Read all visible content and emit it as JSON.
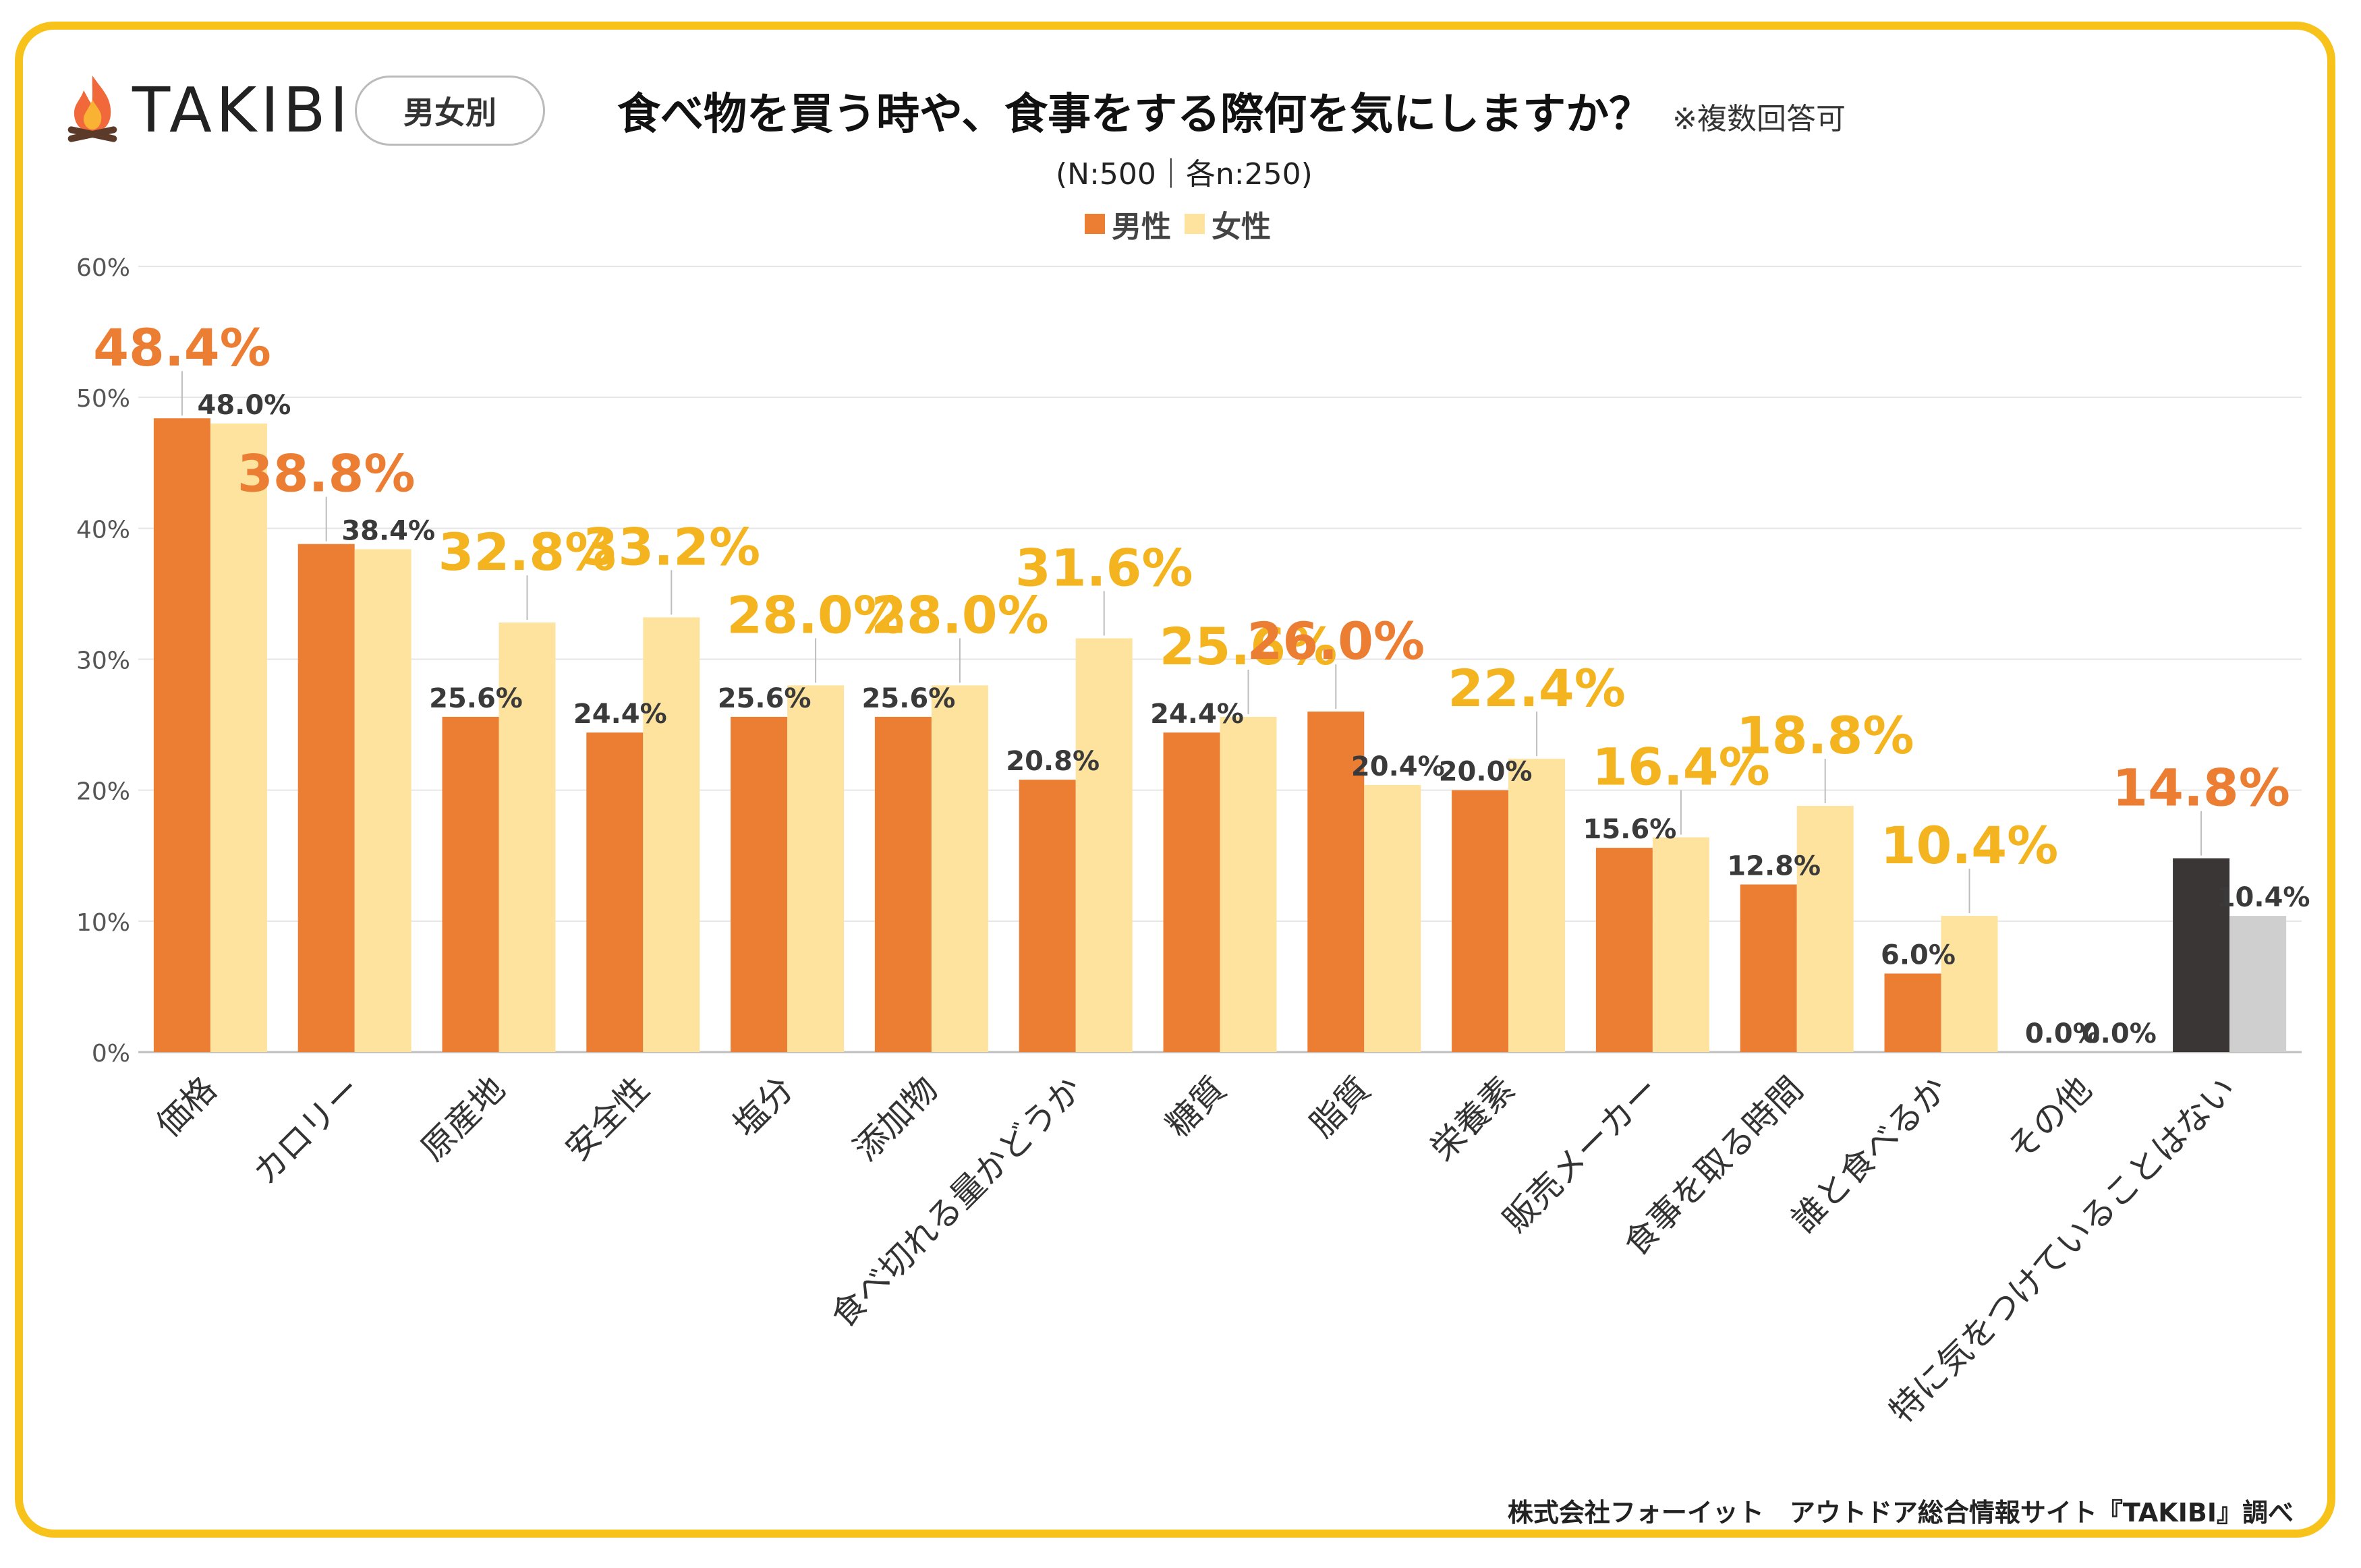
{
  "brand": "TAKIBI",
  "badge": "男女別",
  "title": "食べ物を買う時や、食事をする際何を気にしますか？",
  "title_note": "※複数回答可",
  "subtitle": "(N:500｜各n:250)",
  "footer": "株式会社フォーイット　アウトドア総合情報サイト『TAKIBI』調べ",
  "colors": {
    "male": "#EC7E34",
    "female": "#FDE39E",
    "none_male": "#3A3636",
    "none_female": "#D0CFCF",
    "highlight_orange": "#EC7E34",
    "highlight_yellow": "#F3B41F",
    "frame": "#F7C21A"
  },
  "chart_data": {
    "type": "bar",
    "title": "食べ物を買う時や、食事をする際何を気にしますか？",
    "ylabel": "",
    "xlabel": "",
    "ylim": [
      0,
      60
    ],
    "yticks": [
      0,
      10,
      20,
      30,
      40,
      50,
      60
    ],
    "ytick_labels": [
      "0%",
      "10%",
      "20%",
      "30%",
      "40%",
      "50%",
      "60%"
    ],
    "grid": true,
    "legend_position": "top-center",
    "categories": [
      "価格",
      "カロリー",
      "原産地",
      "安全性",
      "塩分",
      "添加物",
      "食べ切れる量かどうか",
      "糖質",
      "脂質",
      "栄養素",
      "販売メーカー",
      "食事を取る時間",
      "誰と食べるか",
      "その他",
      "特に気をつけていることはない"
    ],
    "series": [
      {
        "name": "男性",
        "values": [
          48.4,
          38.8,
          25.6,
          24.4,
          25.6,
          25.6,
          20.8,
          24.4,
          26.0,
          20.0,
          15.6,
          12.8,
          6.0,
          0.0,
          14.8
        ],
        "labels": [
          "48.4%",
          "38.8%",
          "25.6%",
          "24.4%",
          "25.6%",
          "25.6%",
          "20.8%",
          "24.4%",
          "26.0%",
          "20.0%",
          "15.6%",
          "12.8%",
          "6.0%",
          "0.0%",
          "14.8%"
        ],
        "highlight": [
          true,
          true,
          false,
          false,
          false,
          false,
          false,
          false,
          true,
          false,
          false,
          false,
          false,
          false,
          true
        ]
      },
      {
        "name": "女性",
        "values": [
          48.0,
          38.4,
          32.8,
          33.2,
          28.0,
          28.0,
          31.6,
          25.6,
          20.4,
          22.4,
          16.4,
          18.8,
          10.4,
          0.0,
          10.4
        ],
        "labels": [
          "48.0%",
          "38.4%",
          "32.8%",
          "33.2%",
          "28.0%",
          "28.0%",
          "31.6%",
          "25.6%",
          "20.4%",
          "22.4%",
          "16.4%",
          "18.8%",
          "10.4%",
          "0.0%",
          "10.4%"
        ],
        "highlight": [
          false,
          false,
          true,
          true,
          true,
          true,
          true,
          true,
          false,
          true,
          true,
          true,
          true,
          false,
          false
        ]
      }
    ]
  }
}
